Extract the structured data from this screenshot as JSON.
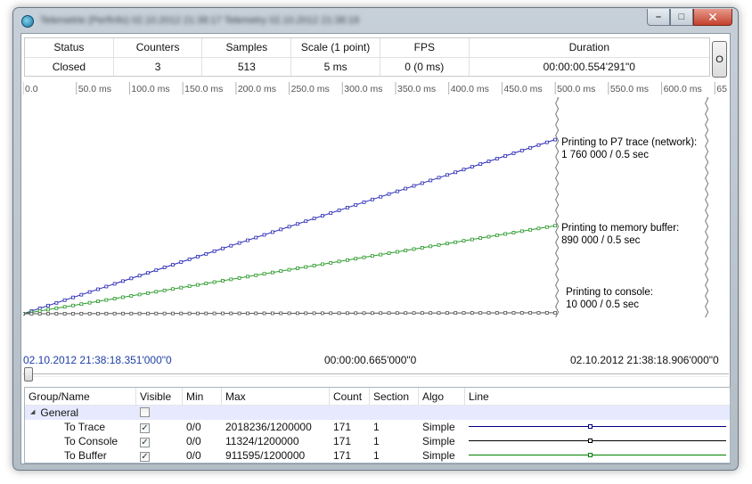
{
  "window": {
    "title": "Telemetrie (PerfInfo) 02.10.2012 21:38:17 Telemetry 02.10.2012 21:38:18",
    "controls": {
      "minimize": "–",
      "maximize": "□",
      "close": "✕"
    },
    "icon": "app-icon"
  },
  "status": {
    "headers": {
      "status": "Status",
      "counters": "Counters",
      "samples": "Samples",
      "scale": "Scale (1 point)",
      "fps": "FPS",
      "duration": "Duration"
    },
    "values": {
      "status": "Closed",
      "counters": "3",
      "samples": "513",
      "scale": "5 ms",
      "fps": "0 (0 ms)",
      "duration": "00:00:00.554'291\"0"
    },
    "o_button": "O"
  },
  "chart_data": {
    "type": "line",
    "x_tick_labels": [
      "0.0",
      "50.0 ms",
      "100.0 ms",
      "150.0 ms",
      "200.0 ms",
      "250.0 ms",
      "300.0 ms",
      "350.0 ms",
      "400.0 ms",
      "450.0 ms",
      "500.0 ms",
      "550.0 ms",
      "600.0 ms",
      "65"
    ],
    "xlim": [
      0,
      664
    ],
    "ylim": [
      0,
      2180000
    ],
    "series": [
      {
        "key": "trace",
        "color": "#2a2ab8",
        "x": [
          0,
          500
        ],
        "y": [
          0,
          1760000
        ]
      },
      {
        "key": "buffer",
        "color": "#2a9a2a",
        "x": [
          0,
          500
        ],
        "y": [
          0,
          890000
        ]
      },
      {
        "key": "console",
        "color": "#555555",
        "x": [
          0,
          500
        ],
        "y": [
          0,
          10000
        ]
      }
    ],
    "end_x": 500,
    "annotations": [
      {
        "text": "Printing to P7 trace (network):",
        "value": "1 760 000 / 0.5  sec"
      },
      {
        "text": "Printing to memory buffer:",
        "value": "890 000 / 0.5 sec"
      },
      {
        "text": "Printing to console:",
        "value": "10 000 / 0.5 sec"
      }
    ],
    "grid": false
  },
  "timeline": {
    "start": "02.10.2012 21:38:18.351'000\"0",
    "span": "00:00:00.665'000\"0",
    "end": "02.10.2012 21:38:18.906'000\"0",
    "slider_position": 0
  },
  "grid": {
    "headers": {
      "name": "Group/Name",
      "visible": "Visible",
      "min": "Min",
      "max": "Max",
      "count": "Count",
      "section": "Section",
      "algo": "Algo",
      "line": "Line"
    },
    "group": {
      "name": "General",
      "visible": false
    },
    "rows": [
      {
        "name": "To Trace",
        "visible": true,
        "min": "0/0",
        "max": "2018236/1200000",
        "count": "171",
        "section": "1",
        "algo": "Simple",
        "line_color": "#000080"
      },
      {
        "name": "To Console",
        "visible": true,
        "min": "0/0",
        "max": "11324/1200000",
        "count": "171",
        "section": "1",
        "algo": "Simple",
        "line_color": "#000000"
      },
      {
        "name": "To Buffer",
        "visible": true,
        "min": "0/0",
        "max": "911595/1200000",
        "count": "171",
        "section": "1",
        "algo": "Simple",
        "line_color": "#008000"
      }
    ]
  }
}
